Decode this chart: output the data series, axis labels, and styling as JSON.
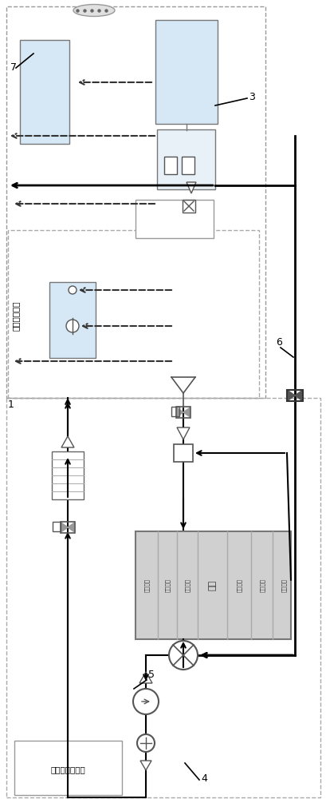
{
  "bg_color": "#ffffff",
  "line_color": "#000000",
  "light_blue": "#d6e8f5",
  "light_gray": "#d0d0d0",
  "dashed_color": "#333333",
  "label_1": "1",
  "label_3": "3",
  "label_4": "4",
  "label_5": "5",
  "label_6": "6",
  "label_7": "7",
  "text_vehicle_storage": "车载储氢系统",
  "text_fuel_cell": "燃料电池发动机",
  "text_stack": "电堆",
  "text_h2_in": "氢气入口",
  "text_air_in": "空气入口",
  "text_cool_in": "冷却入口",
  "text_cool_out": "冷却出口",
  "text_air_out": "空气出口",
  "text_h2_out": "氢气出口"
}
